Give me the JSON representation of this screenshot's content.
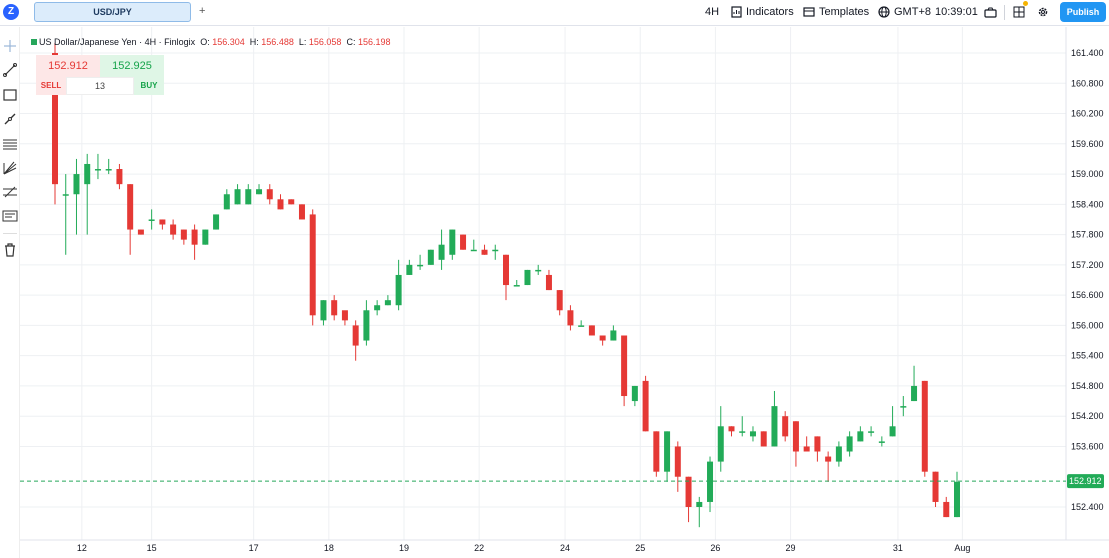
{
  "toolbar": {
    "logo": "Z",
    "tab_label": "USD/JPY",
    "add_tab": "+",
    "interval": "4H",
    "indicators": "Indicators",
    "templates": "Templates",
    "timezone": "GMT+8",
    "clock": "10:39:01",
    "publish": "Publish"
  },
  "left_tools": [
    "crosshair-icon",
    "trend-line-icon",
    "rectangle-icon",
    "brush-icon",
    "fib-retracement-icon",
    "pitchfork-icon",
    "gann-fan-icon",
    "text-note-icon",
    "trash-icon"
  ],
  "legend": {
    "symbol": "US Dollar/Japanese Yen",
    "interval": "4H",
    "source": "Finlogix",
    "o_label": "O:",
    "o": "156.304",
    "h_label": "H:",
    "h": "156.488",
    "l_label": "L:",
    "l": "156.058",
    "c_label": "C:",
    "c": "156.198",
    "sep": "·"
  },
  "trade": {
    "sell_price": "152.912",
    "buy_price": "152.925",
    "sell_label": "SELL",
    "buy_label": "BUY",
    "quantity": "13"
  },
  "colors": {
    "up": "#22ab58",
    "down": "#e53935",
    "accent": "#2196f3",
    "grid": "#eef0f3",
    "last_line": "#26a65b"
  },
  "chart_data": {
    "type": "candlestick",
    "y_ticks": [
      "161.400",
      "160.800",
      "160.200",
      "159.600",
      "159.000",
      "158.400",
      "157.800",
      "157.200",
      "156.600",
      "156.000",
      "155.400",
      "154.800",
      "154.200",
      "153.600",
      "152.400"
    ],
    "y_tick_values": [
      161.4,
      160.8,
      160.2,
      159.6,
      159.0,
      158.4,
      157.8,
      157.2,
      156.6,
      156.0,
      155.4,
      154.8,
      154.2,
      153.6,
      152.4
    ],
    "ylim": [
      152.0,
      161.9
    ],
    "x_ticks": [
      "12",
      "15",
      "17",
      "18",
      "19",
      "22",
      "24",
      "25",
      "26",
      "29",
      "31",
      "Aug"
    ],
    "last_price": "152.912",
    "candles": [
      [
        161.4,
        158.8,
        161.6,
        158.4
      ],
      [
        158.6,
        158.6,
        159.0,
        157.4
      ],
      [
        158.6,
        159.0,
        159.3,
        157.8
      ],
      [
        158.8,
        159.2,
        159.4,
        157.8
      ],
      [
        159.1,
        159.1,
        159.4,
        158.9
      ],
      [
        159.1,
        159.1,
        159.3,
        159.0
      ],
      [
        159.1,
        158.8,
        159.2,
        158.7
      ],
      [
        158.8,
        157.9,
        158.8,
        157.4
      ],
      [
        157.9,
        157.8,
        157.9,
        157.8
      ],
      [
        158.1,
        158.1,
        158.3,
        157.9
      ],
      [
        158.1,
        158.0,
        158.1,
        157.9
      ],
      [
        158.0,
        157.8,
        158.1,
        157.7
      ],
      [
        157.9,
        157.7,
        157.9,
        157.6
      ],
      [
        157.9,
        157.6,
        158.0,
        157.3
      ],
      [
        157.6,
        157.9,
        157.9,
        157.6
      ],
      [
        157.9,
        158.2,
        158.2,
        157.9
      ],
      [
        158.3,
        158.6,
        158.7,
        158.3
      ],
      [
        158.4,
        158.7,
        158.8,
        158.4
      ],
      [
        158.4,
        158.7,
        158.8,
        158.4
      ],
      [
        158.6,
        158.7,
        158.8,
        158.6
      ],
      [
        158.7,
        158.5,
        158.8,
        158.4
      ],
      [
        158.5,
        158.3,
        158.6,
        158.3
      ],
      [
        158.5,
        158.4,
        158.5,
        158.4
      ],
      [
        158.4,
        158.1,
        158.4,
        158.1
      ],
      [
        158.2,
        156.2,
        158.3,
        156.0
      ],
      [
        156.1,
        156.5,
        156.5,
        156.0
      ],
      [
        156.5,
        156.2,
        156.6,
        156.1
      ],
      [
        156.3,
        156.1,
        156.2,
        156.0
      ],
      [
        156.0,
        155.6,
        156.1,
        155.3
      ],
      [
        155.7,
        156.3,
        156.5,
        155.6
      ],
      [
        156.3,
        156.4,
        156.5,
        156.2
      ],
      [
        156.4,
        156.5,
        156.6,
        156.4
      ],
      [
        156.4,
        157.0,
        157.3,
        156.3
      ],
      [
        157.0,
        157.2,
        157.3,
        157.0
      ],
      [
        157.2,
        157.2,
        157.4,
        157.1
      ],
      [
        157.2,
        157.5,
        157.5,
        157.2
      ],
      [
        157.3,
        157.6,
        157.9,
        157.1
      ],
      [
        157.4,
        157.9,
        157.9,
        157.3
      ],
      [
        157.8,
        157.5,
        157.8,
        157.5
      ],
      [
        157.5,
        157.5,
        157.7,
        157.5
      ],
      [
        157.5,
        157.4,
        157.6,
        157.4
      ],
      [
        157.5,
        157.5,
        157.6,
        157.3
      ],
      [
        157.4,
        156.8,
        157.4,
        156.5
      ],
      [
        156.8,
        156.8,
        156.9,
        156.8
      ],
      [
        156.8,
        157.1,
        157.1,
        156.8
      ],
      [
        157.1,
        157.1,
        157.2,
        157.0
      ],
      [
        157.0,
        156.7,
        157.1,
        156.7
      ],
      [
        156.7,
        156.3,
        156.7,
        156.2
      ],
      [
        156.3,
        156.0,
        156.4,
        155.9
      ],
      [
        156.0,
        156.0,
        156.1,
        156.0
      ],
      [
        156.0,
        155.8,
        156.0,
        155.8
      ],
      [
        155.8,
        155.7,
        155.8,
        155.6
      ],
      [
        155.7,
        155.9,
        156.0,
        155.7
      ],
      [
        155.8,
        154.6,
        155.8,
        154.4
      ],
      [
        154.5,
        154.8,
        154.8,
        154.4
      ],
      [
        154.9,
        153.9,
        155.0,
        153.9
      ],
      [
        153.9,
        153.1,
        153.9,
        153.0
      ],
      [
        153.1,
        153.9,
        153.9,
        152.9
      ],
      [
        153.6,
        153.0,
        153.7,
        152.7
      ],
      [
        153.0,
        152.4,
        153.0,
        152.1
      ],
      [
        152.4,
        152.5,
        152.6,
        152.0
      ],
      [
        152.5,
        153.3,
        153.4,
        152.3
      ],
      [
        153.3,
        154.0,
        154.4,
        153.1
      ],
      [
        154.0,
        153.9,
        154.0,
        153.8
      ],
      [
        153.9,
        153.9,
        154.2,
        153.8
      ],
      [
        153.8,
        153.9,
        154.0,
        153.7
      ],
      [
        153.9,
        153.6,
        153.9,
        153.6
      ],
      [
        153.6,
        154.4,
        154.7,
        153.6
      ],
      [
        154.2,
        153.8,
        154.3,
        153.7
      ],
      [
        154.1,
        153.5,
        154.1,
        153.2
      ],
      [
        153.6,
        153.5,
        153.8,
        153.5
      ],
      [
        153.8,
        153.5,
        153.8,
        153.3
      ],
      [
        153.4,
        153.3,
        153.5,
        152.9
      ],
      [
        153.3,
        153.6,
        153.7,
        153.2
      ],
      [
        153.5,
        153.8,
        153.9,
        153.4
      ],
      [
        153.7,
        153.9,
        154.0,
        153.7
      ],
      [
        153.9,
        153.9,
        154.0,
        153.8
      ],
      [
        153.7,
        153.7,
        153.8,
        153.6
      ],
      [
        153.8,
        154.0,
        154.4,
        153.8
      ],
      [
        154.4,
        154.4,
        154.6,
        154.2
      ],
      [
        154.5,
        154.8,
        155.2,
        154.5
      ],
      [
        154.9,
        153.1,
        154.9,
        153.0
      ],
      [
        153.1,
        152.5,
        153.1,
        152.4
      ],
      [
        152.5,
        152.2,
        152.6,
        152.2
      ],
      [
        152.2,
        152.9,
        153.1,
        152.2
      ]
    ]
  }
}
